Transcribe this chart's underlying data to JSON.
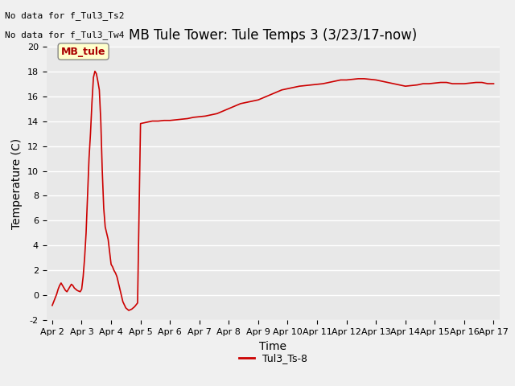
{
  "title": "MB Tule Tower: Tule Temps 3 (3/23/17-now)",
  "xlabel": "Time",
  "ylabel": "Temperature (C)",
  "ylim": [
    -2,
    20
  ],
  "yticks": [
    -2,
    0,
    2,
    4,
    6,
    8,
    10,
    12,
    14,
    16,
    18,
    20
  ],
  "xtick_labels": [
    "Apr 2",
    "Apr 3",
    "Apr 4",
    "Apr 5",
    "Apr 6",
    "Apr 7",
    "Apr 8",
    "Apr 9",
    "Apr 10",
    "Apr 11",
    "Apr 12",
    "Apr 13",
    "Apr 14",
    "Apr 15",
    "Apr 16",
    "Apr 17"
  ],
  "no_data_text1": "No data for f_Tul3_Ts2",
  "no_data_text2": "No data for f_Tul3_Tw4",
  "legend_box_label": "MB_tule",
  "legend_line_label": "Tul3_Ts-8",
  "line_color": "#cc0000",
  "bg_color": "#e8e8e8",
  "grid_color": "#ffffff",
  "title_fontsize": 12,
  "axis_label_fontsize": 10,
  "tick_fontsize": 8,
  "annotation_fontsize": 8,
  "x_series": [
    0.0,
    0.05,
    0.1,
    0.15,
    0.2,
    0.25,
    0.3,
    0.35,
    0.4,
    0.45,
    0.5,
    0.55,
    0.6,
    0.65,
    0.7,
    0.75,
    0.8,
    0.85,
    0.9,
    0.95,
    1.0,
    1.05,
    1.1,
    1.15,
    1.2,
    1.25,
    1.3,
    1.35,
    1.4,
    1.45,
    1.5,
    1.55,
    1.6,
    1.65,
    1.7,
    1.75,
    1.8,
    1.85,
    1.9,
    1.95,
    2.0,
    2.05,
    2.1,
    2.15,
    2.2,
    2.25,
    2.3,
    2.35,
    2.4,
    2.5,
    2.6,
    2.7,
    2.8,
    2.9,
    3.0,
    3.2,
    3.4,
    3.6,
    3.8,
    4.0,
    4.2,
    4.4,
    4.6,
    4.8,
    5.0,
    5.2,
    5.4,
    5.6,
    5.8,
    6.0,
    6.2,
    6.4,
    6.6,
    6.8,
    7.0,
    7.2,
    7.4,
    7.6,
    7.8,
    8.0,
    8.2,
    8.4,
    8.6,
    8.8,
    9.0,
    9.2,
    9.4,
    9.6,
    9.8,
    10.0,
    10.2,
    10.4,
    10.6,
    10.8,
    11.0,
    11.2,
    11.4,
    11.6,
    11.8,
    12.0,
    12.2,
    12.4,
    12.6,
    12.8,
    13.0,
    13.2,
    13.4,
    13.6,
    13.8,
    14.0,
    14.2,
    14.4,
    14.6,
    14.8,
    15.0
  ],
  "y_series": [
    -0.8,
    -0.5,
    -0.2,
    0.1,
    0.5,
    0.8,
    1.0,
    0.8,
    0.6,
    0.4,
    0.3,
    0.5,
    0.7,
    0.9,
    0.8,
    0.6,
    0.5,
    0.4,
    0.35,
    0.3,
    0.5,
    1.5,
    3.0,
    5.0,
    8.0,
    11.0,
    13.0,
    15.5,
    17.5,
    18.0,
    17.8,
    17.2,
    16.5,
    14.0,
    10.0,
    7.0,
    5.5,
    5.0,
    4.5,
    3.5,
    2.5,
    2.3,
    2.0,
    1.8,
    1.5,
    1.0,
    0.5,
    0.0,
    -0.5,
    -1.0,
    -1.2,
    -1.1,
    -0.9,
    -0.6,
    13.8,
    13.9,
    14.0,
    14.0,
    14.05,
    14.05,
    14.1,
    14.15,
    14.2,
    14.3,
    14.35,
    14.4,
    14.5,
    14.6,
    14.8,
    15.0,
    15.2,
    15.4,
    15.5,
    15.6,
    15.7,
    15.9,
    16.1,
    16.3,
    16.5,
    16.6,
    16.7,
    16.8,
    16.85,
    16.9,
    16.95,
    17.0,
    17.1,
    17.2,
    17.3,
    17.3,
    17.35,
    17.4,
    17.4,
    17.35,
    17.3,
    17.2,
    17.1,
    17.0,
    16.9,
    16.8,
    16.85,
    16.9,
    17.0,
    17.0,
    17.05,
    17.1,
    17.1,
    17.0,
    17.0,
    17.0,
    17.05,
    17.1,
    17.1,
    17.0,
    17.0
  ]
}
